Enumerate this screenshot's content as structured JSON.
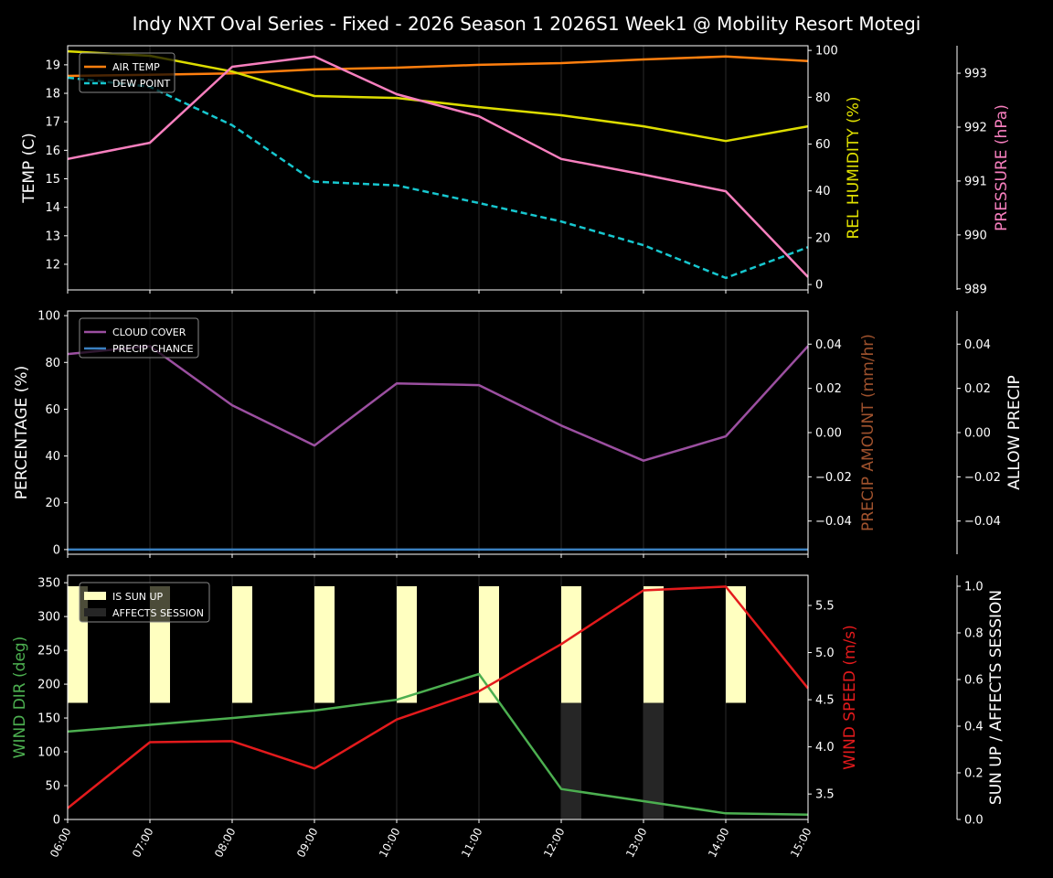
{
  "title": "Indy NXT Oval Series - Fixed - 2026 Season 1 2026S1 Week1 @ Mobility Resort Motegi",
  "chart_data": [
    {
      "type": "line",
      "x": [
        "06:00",
        "07:00",
        "08:00",
        "09:00",
        "10:00",
        "11:00",
        "12:00",
        "13:00",
        "14:00",
        "15:00"
      ],
      "grid": "vertical",
      "legend": "top-left",
      "axes": {
        "left": {
          "label": "TEMP (C)",
          "color": "#ffffff",
          "ylim": [
            11.1,
            19.67
          ],
          "ticks": [
            12,
            13,
            14,
            15,
            16,
            17,
            18,
            19
          ],
          "tick_labels": [
            "12",
            "13",
            "14",
            "15",
            "16",
            "17",
            "18",
            "19"
          ]
        },
        "right": {
          "label": "REL HUMIDITY (%)",
          "color": "#e0e000",
          "ylim": [
            -2.3,
            102
          ],
          "ticks": [
            0,
            20,
            40,
            60,
            80,
            100
          ],
          "tick_labels": [
            "0",
            "20",
            "40",
            "60",
            "80",
            "100"
          ]
        },
        "right_outer": {
          "label": "PRESSURE (hPa)",
          "color": "#f77fbe",
          "ylim": [
            988.98,
            993.51
          ],
          "ticks": [
            989,
            990,
            991,
            992,
            993
          ],
          "tick_labels": [
            "989",
            "990",
            "991",
            "992",
            "993"
          ]
        }
      },
      "series": [
        {
          "name": "AIR TEMP",
          "axis": "left",
          "color": "#ff7f0e",
          "style": "solid",
          "legend": true,
          "values": [
            18.61,
            18.65,
            18.7,
            18.84,
            18.9,
            19.0,
            19.06,
            19.19,
            19.29,
            19.13
          ]
        },
        {
          "name": "DEW POINT",
          "axis": "left",
          "color": "#17c7cf",
          "style": "dashed",
          "legend": true,
          "values": [
            18.55,
            18.23,
            16.88,
            14.9,
            14.77,
            14.15,
            13.5,
            12.67,
            11.52,
            12.6
          ]
        },
        {
          "axis": "right",
          "color": "#dddd00",
          "style": "solid",
          "legend": false,
          "values": [
            99.6,
            97.7,
            91,
            80.5,
            79.7,
            75.8,
            72.3,
            67.6,
            61.3,
            67.6
          ]
        },
        {
          "axis": "right_outer",
          "color": "#f77fbe",
          "style": "solid",
          "legend": false,
          "values": [
            991.41,
            991.71,
            993.12,
            993.31,
            992.61,
            992.2,
            991.41,
            991.12,
            990.81,
            989.22
          ]
        }
      ]
    },
    {
      "type": "line",
      "x": [
        "06:00",
        "07:00",
        "08:00",
        "09:00",
        "10:00",
        "11:00",
        "12:00",
        "13:00",
        "14:00",
        "15:00"
      ],
      "grid": "vertical",
      "legend": "top-left",
      "axes": {
        "left": {
          "label": "PERCENTAGE (%)",
          "color": "#ffffff",
          "ylim": [
            -2,
            102
          ],
          "ticks": [
            0,
            20,
            40,
            60,
            80,
            100
          ],
          "tick_labels": [
            "0",
            "20",
            "40",
            "60",
            "80",
            "100"
          ]
        },
        "right": {
          "label": "PRECIP AMOUNT (mm/hr)",
          "color": "#a0522d",
          "ylim": [
            -0.055,
            0.055
          ],
          "ticks": [
            -0.04,
            -0.02,
            0,
            0.02,
            0.04
          ],
          "tick_labels": [
            "−0.04",
            "−0.02",
            "0.00",
            "0.02",
            "0.04"
          ]
        },
        "right_outer": {
          "label": "ALLOW PRECIP",
          "color": "#ffffff",
          "ylim": [
            -0.055,
            0.055
          ],
          "ticks": [
            -0.04,
            -0.02,
            0,
            0.02,
            0.04
          ],
          "tick_labels": [
            "−0.04",
            "−0.02",
            "0.00",
            "0.02",
            "0.04"
          ]
        }
      },
      "series": [
        {
          "name": "CLOUD COVER",
          "axis": "left",
          "color": "#9b4fa0",
          "style": "solid",
          "legend": true,
          "values": [
            83.6,
            87,
            61.7,
            44.5,
            71,
            70.3,
            53,
            38,
            48.4,
            87
          ]
        },
        {
          "name": "PRECIP CHANCE",
          "axis": "left",
          "color": "#3a80c0",
          "style": "solid",
          "legend": true,
          "values": [
            0,
            0,
            0,
            0,
            0,
            0,
            0,
            0,
            0,
            0
          ]
        }
      ]
    },
    {
      "type": "line",
      "x": [
        "06:00",
        "07:00",
        "08:00",
        "09:00",
        "10:00",
        "11:00",
        "12:00",
        "13:00",
        "14:00",
        "15:00"
      ],
      "grid": "vertical",
      "legend": "top-left",
      "axes": {
        "left": {
          "label": "WIND DIR (deg)",
          "color": "#4caf50",
          "ylim": [
            0,
            361
          ],
          "ticks": [
            0,
            50,
            100,
            150,
            200,
            250,
            300,
            350
          ],
          "tick_labels": [
            "0",
            "50",
            "100",
            "150",
            "200",
            "250",
            "300",
            "350"
          ]
        },
        "right": {
          "label": "WIND SPEED (m/s)",
          "color": "#e31a1c",
          "ylim": [
            3.23,
            5.82
          ],
          "ticks": [
            3.5,
            4.0,
            4.5,
            5.0,
            5.5
          ],
          "tick_labels": [
            "3.5",
            "4.0",
            "4.5",
            "5.0",
            "5.5"
          ]
        },
        "right_outer": {
          "label": "SUN UP / AFFECTS SESSION",
          "color": "#ffffff",
          "ylim": [
            0,
            1.047
          ],
          "ticks": [
            0,
            0.2,
            0.4,
            0.6,
            0.8,
            1.0
          ],
          "tick_labels": [
            "0.0",
            "0.2",
            "0.4",
            "0.6",
            "0.8",
            "1.0"
          ]
        }
      },
      "bars": [
        {
          "name": "IS SUN UP",
          "axis": "right_outer",
          "color": "#ffffc0",
          "range": [
            0.5,
            1.0
          ],
          "values": [
            1,
            1,
            1,
            1,
            1,
            1,
            1,
            1,
            1,
            1
          ]
        },
        {
          "name": "AFFECTS SESSION",
          "axis": "right_outer",
          "color": "#262626",
          "range": [
            0,
            0.5
          ],
          "values": [
            0,
            0,
            0,
            0,
            0,
            0,
            1,
            1,
            0,
            0
          ]
        }
      ],
      "series": [
        {
          "axis": "left",
          "color": "#4caf50",
          "style": "solid",
          "legend": false,
          "values": [
            130,
            140,
            150,
            161,
            177,
            215,
            45,
            27,
            9,
            7
          ]
        },
        {
          "axis": "right",
          "color": "#e31a1c",
          "style": "solid",
          "legend": false,
          "values": [
            3.35,
            4.05,
            4.06,
            3.77,
            4.29,
            4.59,
            5.09,
            5.66,
            5.7,
            4.62
          ]
        }
      ]
    }
  ]
}
